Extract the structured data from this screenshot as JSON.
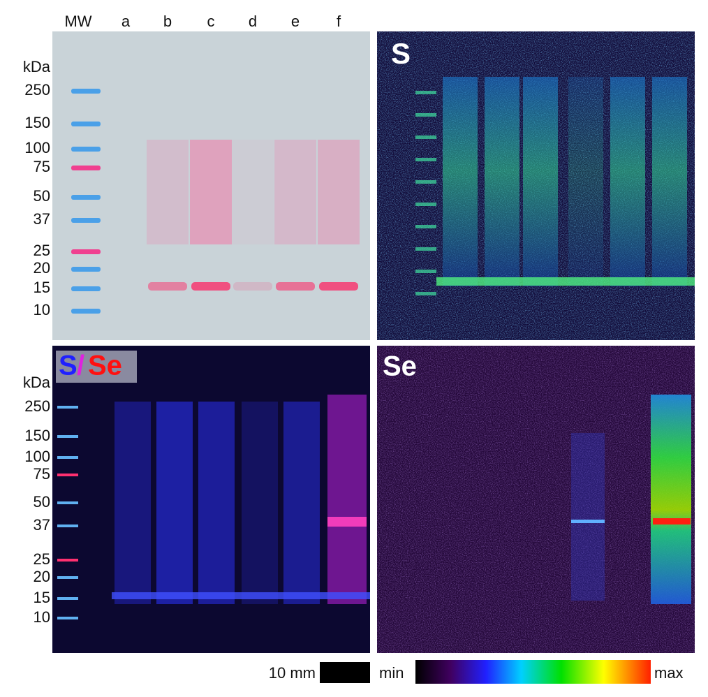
{
  "gel": {
    "lanes": [
      "MW",
      "a",
      "b",
      "c",
      "d",
      "e",
      "f"
    ],
    "unit": "kDa",
    "markers": [
      250,
      150,
      100,
      75,
      50,
      37,
      25,
      20,
      15,
      10
    ]
  },
  "s_map": {
    "label": "S"
  },
  "overlay": {
    "label_parts": [
      "S",
      "/",
      "Se"
    ],
    "unit": "kDa",
    "markers": [
      250,
      150,
      100,
      75,
      50,
      37,
      25,
      20,
      15,
      10
    ]
  },
  "se_map": {
    "label": "Se"
  },
  "scale_bar": {
    "label": "10 mm"
  },
  "colorbar": {
    "min_label": "min",
    "max_label": "max"
  }
}
